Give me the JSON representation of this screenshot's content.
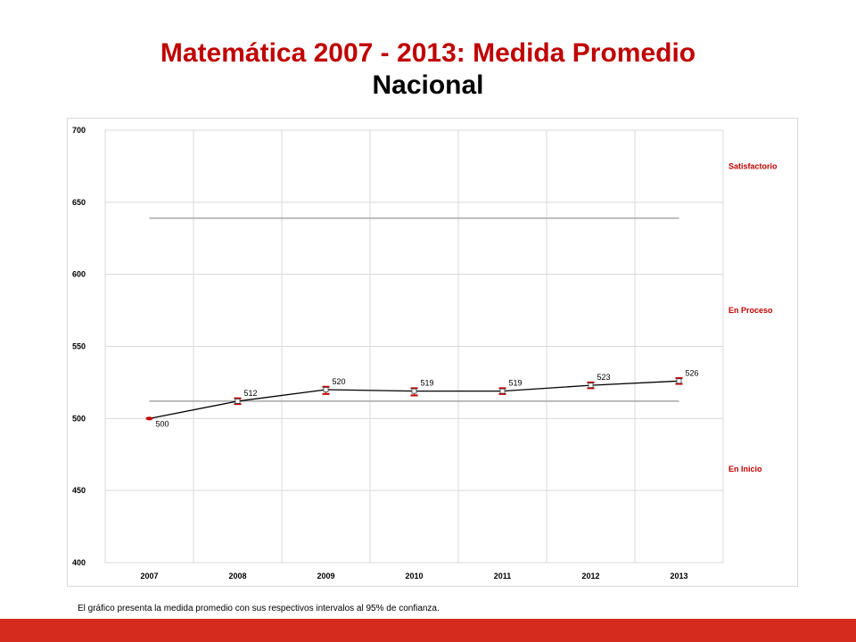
{
  "title_line1": "Matemática 2007 - 2013: Medida Promedio",
  "title_line2": "Nacional",
  "footnote": "El gráfico presenta la medida promedio con sus respectivos intervalos al 95% de confianza.",
  "colors": {
    "title": "#c00000",
    "line": "#000000",
    "error_bar": "#c00000",
    "threshold": "#a6a6a6",
    "zone_label": "#c00000",
    "footer_bar": "#d52b1e"
  },
  "chart_data": {
    "type": "line",
    "title": "",
    "xlabel": "",
    "ylabel": "",
    "categories": [
      "2007",
      "2008",
      "2009",
      "2010",
      "2011",
      "2012",
      "2013"
    ],
    "series": [
      {
        "values": [
          500,
          512,
          520,
          519,
          519,
          523,
          526
        ],
        "error_low": [
          500,
          510,
          517,
          516,
          517,
          521,
          524
        ],
        "error_high": [
          500,
          514,
          522,
          521,
          521,
          525,
          528
        ]
      }
    ],
    "data_labels": [
      "500",
      "512",
      "520",
      "519",
      "519",
      "523",
      "526"
    ],
    "ylim": [
      400,
      700
    ],
    "yticks": [
      400,
      450,
      500,
      550,
      600,
      650,
      700
    ],
    "grid": true,
    "thresholds": [
      512,
      639
    ],
    "zones": [
      {
        "label": "Satisfactorio",
        "value": 675
      },
      {
        "label": "En Proceso",
        "value": 575
      },
      {
        "label": "En Inicio",
        "value": 465
      }
    ]
  }
}
